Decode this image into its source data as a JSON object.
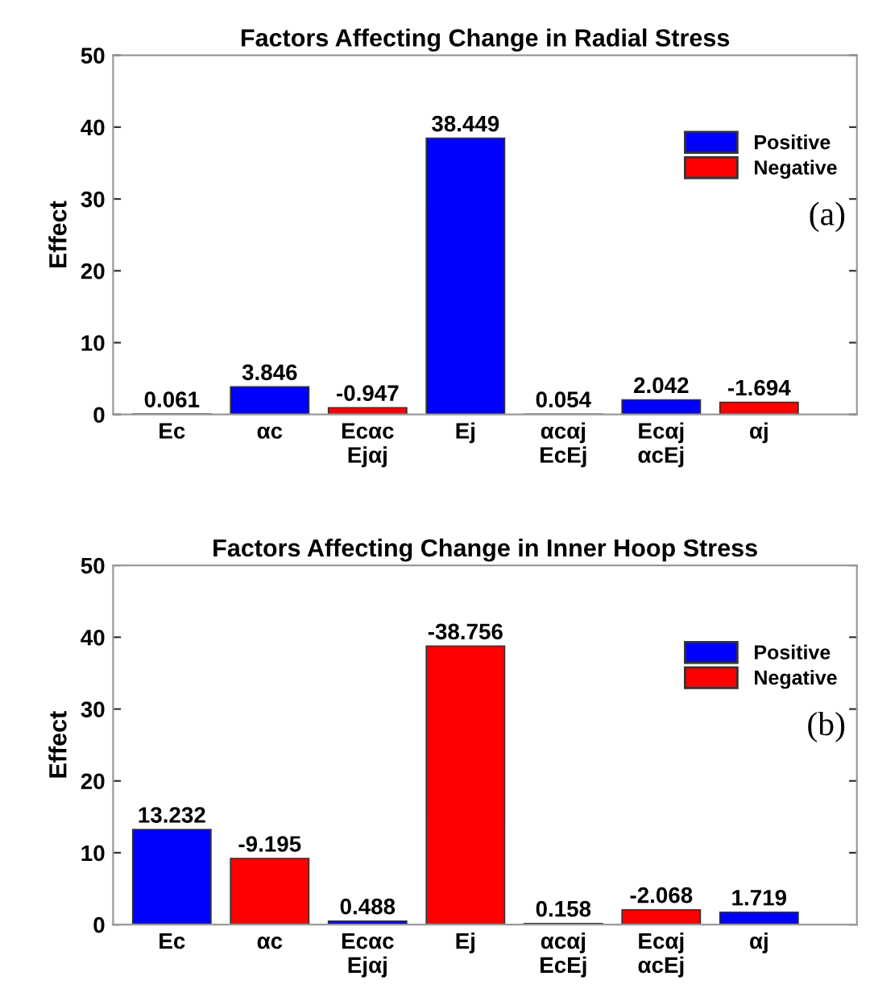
{
  "chart_data": [
    {
      "type": "bar",
      "title": "Factors Affecting Change in Radial Stress",
      "ylabel": "Effect",
      "categories": [
        "Ec",
        "αc",
        "Ecαc\nEjαj",
        "Ej",
        "αcαj\nEcEj",
        "Ecαj\nαcEj",
        "αj"
      ],
      "ylim": [
        0,
        50
      ],
      "yticks": [
        0,
        10,
        20,
        30,
        40,
        50
      ],
      "grid": false,
      "legend": "top right",
      "annotations": [
        "(a)"
      ],
      "data_labels": true,
      "series": [
        {
          "name": "Positive",
          "color": "#0000ff",
          "values": [
            0.061,
            3.846,
            null,
            38.449,
            0.054,
            2.042,
            null
          ]
        },
        {
          "name": "Negative",
          "color": "#ff0000",
          "values": [
            null,
            null,
            -0.947,
            null,
            null,
            null,
            -1.694
          ],
          "base": [
            null,
            null,
            0.947,
            null,
            null,
            null,
            1.694
          ]
        }
      ]
    },
    {
      "type": "bar",
      "title": "Factors Affecting Change in Inner Hoop Stress",
      "ylabel": "Effect",
      "categories": [
        "Ec",
        "αc",
        "Ecαc\nEjαj",
        "Ej",
        "αcαj\nEcEj",
        "Ecαj\nαcEj",
        "αj"
      ],
      "ylim": [
        0,
        50
      ],
      "yticks": [
        0,
        10,
        20,
        30,
        40,
        50
      ],
      "grid": false,
      "legend": "top right",
      "annotations": [
        "(b)"
      ],
      "data_labels": true,
      "series": [
        {
          "name": "Positive",
          "color": "#0000ff",
          "values": [
            13.232,
            null,
            0.488,
            null,
            0.158,
            null,
            1.719
          ]
        },
        {
          "name": "Negative",
          "color": "#ff0000",
          "values": [
            null,
            -9.195,
            null,
            -38.756,
            null,
            -2.068,
            null
          ],
          "base": [
            null,
            9.195,
            null,
            38.756,
            null,
            2.068,
            null
          ]
        }
      ]
    }
  ]
}
